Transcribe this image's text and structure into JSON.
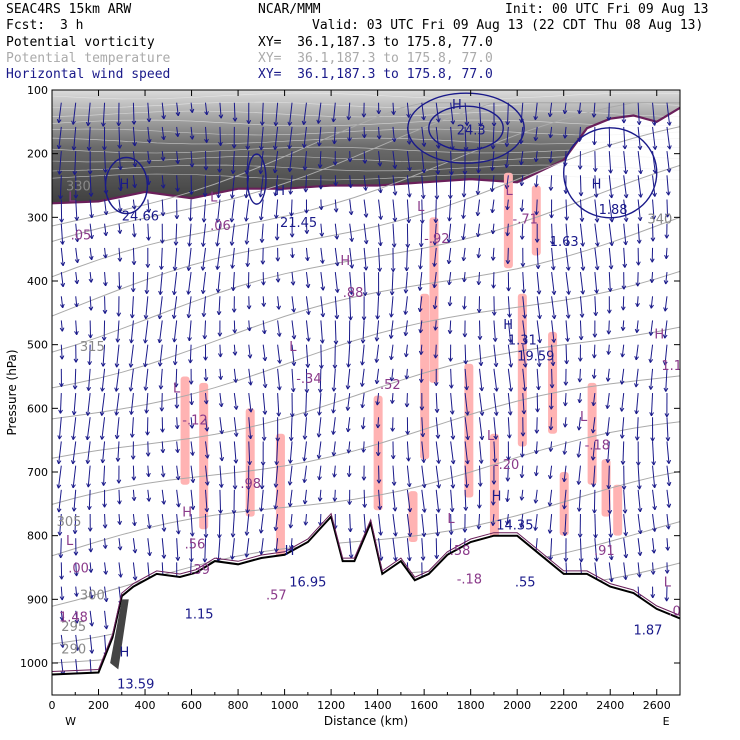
{
  "header": {
    "model": "SEAC4RS 15km ARW",
    "org": "NCAR/MMM",
    "init": "Init: 00 UTC Fri 09 Aug 13",
    "fcst_label": "Fcst:",
    "fcst_value": "3 h",
    "valid": "Valid: 03 UTC Fri 09 Aug 13 (22 CDT Thu 08 Aug 13)"
  },
  "legend": [
    {
      "name": "Potential vorticity",
      "xy": "XY=  36.1,187.3 to 175.8, 77.0",
      "color": "#000000"
    },
    {
      "name": "Potential temperature",
      "xy": "XY=  36.1,187.3 to 175.8, 77.0",
      "color": "#aaaaaa"
    },
    {
      "name": "Horizontal wind speed",
      "xy": "XY=  36.1,187.3 to 175.8, 77.0",
      "color": "#1a1a8a"
    }
  ],
  "colors": {
    "pv_fill_dark": "#555555",
    "pv_positive": "#ffb3b3",
    "pv_contour": "#6a1f5a",
    "theta": "#aaaaaa",
    "wind": "#1a1a8a",
    "terrain": "#000000"
  },
  "chart_data": {
    "type": "cross-section",
    "xlabel": "Distance (km)",
    "ylabel": "Pressure (hPa)",
    "xlim": [
      0,
      2700
    ],
    "ylim": [
      1050,
      100
    ],
    "x_ticks": [
      0,
      200,
      400,
      600,
      800,
      1000,
      1200,
      1400,
      1600,
      1800,
      2000,
      2200,
      2400,
      2600
    ],
    "y_ticks": [
      100,
      200,
      300,
      400,
      500,
      600,
      700,
      800,
      900,
      1000
    ],
    "x_end_labels": [
      "W",
      "E"
    ],
    "terrain_surface": [
      {
        "x": 0,
        "p": 1018
      },
      {
        "x": 200,
        "p": 1015
      },
      {
        "x": 260,
        "p": 960
      },
      {
        "x": 300,
        "p": 895
      },
      {
        "x": 350,
        "p": 880
      },
      {
        "x": 450,
        "p": 860
      },
      {
        "x": 550,
        "p": 865
      },
      {
        "x": 620,
        "p": 858
      },
      {
        "x": 700,
        "p": 840
      },
      {
        "x": 800,
        "p": 845
      },
      {
        "x": 900,
        "p": 835
      },
      {
        "x": 1000,
        "p": 830
      },
      {
        "x": 1100,
        "p": 810
      },
      {
        "x": 1200,
        "p": 770
      },
      {
        "x": 1250,
        "p": 840
      },
      {
        "x": 1300,
        "p": 840
      },
      {
        "x": 1370,
        "p": 780
      },
      {
        "x": 1420,
        "p": 860
      },
      {
        "x": 1500,
        "p": 840
      },
      {
        "x": 1560,
        "p": 870
      },
      {
        "x": 1620,
        "p": 860
      },
      {
        "x": 1700,
        "p": 830
      },
      {
        "x": 1800,
        "p": 810
      },
      {
        "x": 1900,
        "p": 800
      },
      {
        "x": 2000,
        "p": 800
      },
      {
        "x": 2100,
        "p": 830
      },
      {
        "x": 2200,
        "p": 860
      },
      {
        "x": 2300,
        "p": 860
      },
      {
        "x": 2400,
        "p": 880
      },
      {
        "x": 2500,
        "p": 890
      },
      {
        "x": 2600,
        "p": 915
      },
      {
        "x": 2700,
        "p": 930
      }
    ],
    "tropopause_pv": [
      {
        "x": 0,
        "p": 278
      },
      {
        "x": 200,
        "p": 275
      },
      {
        "x": 400,
        "p": 260
      },
      {
        "x": 600,
        "p": 270
      },
      {
        "x": 800,
        "p": 255
      },
      {
        "x": 1000,
        "p": 255
      },
      {
        "x": 1200,
        "p": 250
      },
      {
        "x": 1400,
        "p": 250
      },
      {
        "x": 1600,
        "p": 245
      },
      {
        "x": 1800,
        "p": 240
      },
      {
        "x": 2000,
        "p": 245
      },
      {
        "x": 2200,
        "p": 210
      },
      {
        "x": 2300,
        "p": 160
      },
      {
        "x": 2400,
        "p": 145
      },
      {
        "x": 2500,
        "p": 140
      },
      {
        "x": 2600,
        "p": 150
      },
      {
        "x": 2700,
        "p": 128
      }
    ],
    "theta_levels": [
      {
        "label": "290",
        "x": 40,
        "p": 985
      },
      {
        "label": "295",
        "x": 40,
        "p": 950
      },
      {
        "label": "300",
        "x": 120,
        "p": 900
      },
      {
        "label": "305",
        "x": 20,
        "p": 785
      },
      {
        "label": "315",
        "x": 120,
        "p": 510
      },
      {
        "label": "330",
        "x": 60,
        "p": 258
      },
      {
        "label": "340",
        "x": 2560,
        "p": 310
      }
    ],
    "pv_labels": [
      {
        "text": "L",
        "x": 70,
        "p": 275
      },
      {
        "text": ".05",
        "x": 80,
        "p": 335
      },
      {
        "text": "L",
        "x": 680,
        "p": 275
      },
      {
        "text": ".06",
        "x": 680,
        "p": 320
      },
      {
        "text": "L",
        "x": 1570,
        "p": 290
      },
      {
        "text": "-.92",
        "x": 1600,
        "p": 340
      },
      {
        "text": "L",
        "x": 1950,
        "p": 265
      },
      {
        "text": "-.71",
        "x": 1980,
        "p": 310
      },
      {
        "text": "H",
        "x": 1240,
        "p": 375
      },
      {
        "text": ".88",
        "x": 1250,
        "p": 425
      },
      {
        "text": "H",
        "x": 2590,
        "p": 490
      },
      {
        "text": "1.11",
        "x": 2620,
        "p": 540
      },
      {
        "text": "L",
        "x": 1020,
        "p": 510
      },
      {
        "text": "-.34",
        "x": 1050,
        "p": 560
      },
      {
        "text": ".52",
        "x": 1410,
        "p": 570
      },
      {
        "text": "L",
        "x": 520,
        "p": 575
      },
      {
        "text": "-.12",
        "x": 560,
        "p": 625
      },
      {
        "text": "L",
        "x": 1870,
        "p": 650
      },
      {
        "text": "-.20",
        "x": 1900,
        "p": 695
      },
      {
        "text": "L",
        "x": 2270,
        "p": 620
      },
      {
        "text": "-.18",
        "x": 2290,
        "p": 665
      },
      {
        "text": ".98",
        "x": 810,
        "p": 725
      },
      {
        "text": "H",
        "x": 560,
        "p": 770
      },
      {
        "text": ".56",
        "x": 570,
        "p": 820
      },
      {
        "text": ".39",
        "x": 590,
        "p": 860
      },
      {
        "text": "L",
        "x": 1700,
        "p": 780
      },
      {
        "text": ".58",
        "x": 1710,
        "p": 830
      },
      {
        "text": "-.18",
        "x": 1740,
        "p": 875
      },
      {
        "text": ".91",
        "x": 2330,
        "p": 830
      },
      {
        "text": "L",
        "x": 60,
        "p": 815
      },
      {
        "text": ".00",
        "x": 70,
        "p": 858
      },
      {
        "text": "1.48",
        "x": 30,
        "p": 935
      },
      {
        "text": "L",
        "x": 2630,
        "p": 880
      },
      {
        "text": ".00",
        "x": 2650,
        "p": 925
      },
      {
        "text": ".57",
        "x": 920,
        "p": 900
      }
    ],
    "ws_labels": [
      {
        "text": "H",
        "x": 290,
        "p": 255
      },
      {
        "text": "24.66",
        "x": 300,
        "p": 305
      },
      {
        "text": "H",
        "x": 960,
        "p": 265
      },
      {
        "text": "21.45",
        "x": 980,
        "p": 315
      },
      {
        "text": "H",
        "x": 1720,
        "p": 130
      },
      {
        "text": "24.3",
        "x": 1740,
        "p": 170
      },
      {
        "text": "H",
        "x": 2320,
        "p": 255
      },
      {
        "text": "1.88",
        "x": 2350,
        "p": 295
      },
      {
        "text": "H",
        "x": 1940,
        "p": 475
      },
      {
        "text": "19.59",
        "x": 2000,
        "p": 525
      },
      {
        "text": "1.31",
        "x": 1960,
        "p": 500
      },
      {
        "text": "1.63",
        "x": 2140,
        "p": 345
      },
      {
        "text": "H",
        "x": 1890,
        "p": 745
      },
      {
        "text": "14.35",
        "x": 1910,
        "p": 790
      },
      {
        "text": "H",
        "x": 1000,
        "p": 830
      },
      {
        "text": "16.95",
        "x": 1020,
        "p": 880
      },
      {
        "text": ".55",
        "x": 1990,
        "p": 880
      },
      {
        "text": "1.15",
        "x": 570,
        "p": 930
      },
      {
        "text": "H",
        "x": 290,
        "p": 990
      },
      {
        "text": "13.59",
        "x": 280,
        "p": 1040
      },
      {
        "text": "1.87",
        "x": 2500,
        "p": 955
      }
    ]
  }
}
